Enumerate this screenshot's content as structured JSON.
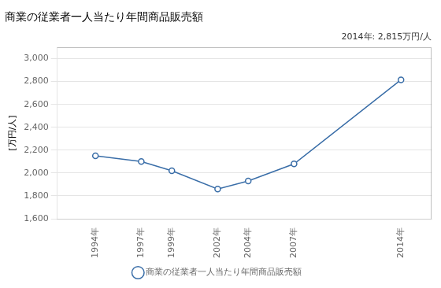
{
  "chart_data": {
    "type": "line",
    "title": "商業の従業者一人当たり年間商品販売額",
    "ylabel": "[万円/人]",
    "annotation": "2014年: 2,815万円/人",
    "x": [
      1994,
      1997,
      1999,
      2002,
      2004,
      2007,
      2014
    ],
    "series": [
      {
        "name": "商業の従業者一人当たり年間商品販売額",
        "color": "#3a6ea8",
        "values": [
          2150,
          2100,
          2020,
          1860,
          1930,
          2080,
          2815
        ]
      }
    ],
    "xlim": [
      1991.5,
      2016
    ],
    "xticks": [
      {
        "value": 1994,
        "label": "1994年"
      },
      {
        "value": 1997,
        "label": "1997年"
      },
      {
        "value": 1999,
        "label": "1999年"
      },
      {
        "value": 2002,
        "label": "2002年"
      },
      {
        "value": 2004,
        "label": "2004年"
      },
      {
        "value": 2007,
        "label": "2007年"
      },
      {
        "value": 2014,
        "label": "2014年"
      }
    ],
    "ylim": [
      1600,
      3100
    ],
    "yticks": [
      {
        "value": 1600,
        "label": "1,600"
      },
      {
        "value": 1800,
        "label": "1,800"
      },
      {
        "value": 2000,
        "label": "2,000"
      },
      {
        "value": 2200,
        "label": "2,200"
      },
      {
        "value": 2400,
        "label": "2,400"
      },
      {
        "value": 2600,
        "label": "2,600"
      },
      {
        "value": 2800,
        "label": "2,800"
      },
      {
        "value": 3000,
        "label": "3,000"
      }
    ],
    "grid": "y",
    "legend": "bottom",
    "marker": "circle"
  }
}
